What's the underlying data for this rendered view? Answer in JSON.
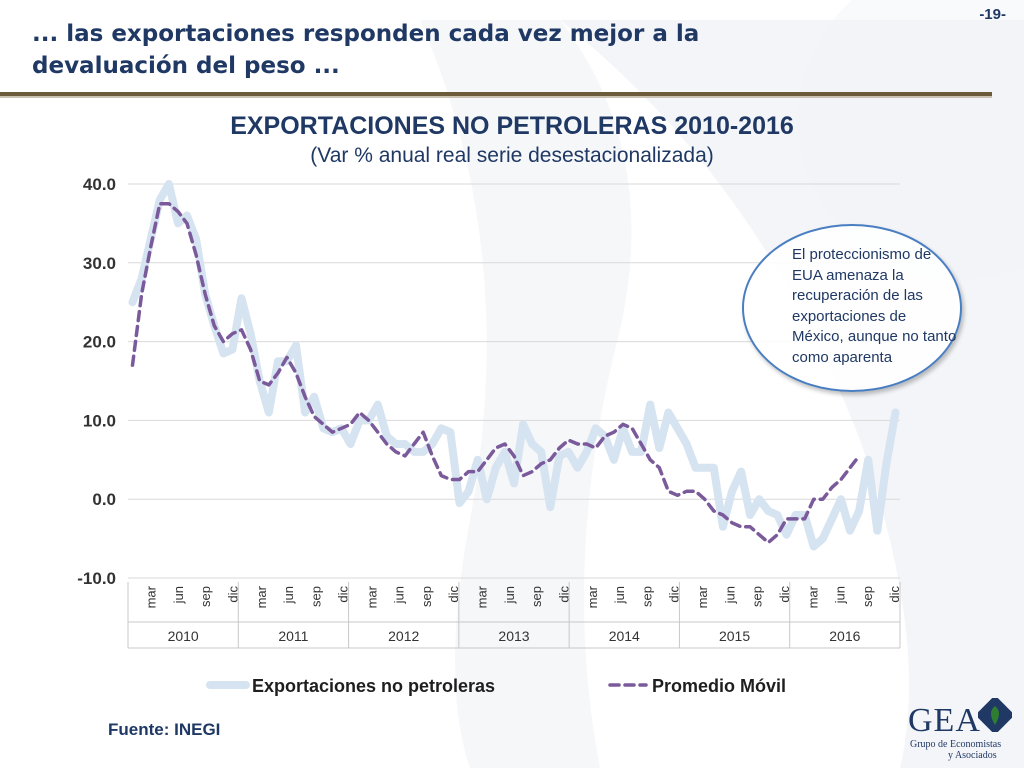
{
  "slide": {
    "title": "... las exportaciones responden cada vez mejor a la devaluación del peso ...",
    "page_number": "-19-",
    "source": "Fuente: INEGI",
    "callout": "El proteccionismo de EUA amenaza la recuperación de las exportaciones de México, aunque no tanto como aparenta",
    "logo": {
      "name": "GEA",
      "line1": "Grupo de Economistas",
      "line2": "y Asociados"
    },
    "colors": {
      "title": "#1f3864",
      "divider": "#6b5b3a",
      "callout_border": "#4a7ec2",
      "logo_mark": "#2e7d32"
    }
  },
  "chart_data": {
    "type": "line",
    "title": "EXPORTACIONES NO PETROLERAS 2010-2016",
    "subtitle": "(Var % anual real serie desestacionalizada)",
    "ylim": [
      -10,
      40
    ],
    "yticks": [
      "40.0",
      "30.0",
      "20.0",
      "10.0",
      "0.0",
      "-10.0"
    ],
    "month_ticks": [
      "mar",
      "jun",
      "sep",
      "dic"
    ],
    "years": [
      "2010",
      "2011",
      "2012",
      "2013",
      "2014",
      "2015",
      "2016"
    ],
    "legend_position": "bottom",
    "grid": true,
    "series": [
      {
        "name": "Exportaciones no petroleras",
        "color": "#d6e3f0",
        "style": "solid",
        "values": [
          25,
          28,
          33,
          38,
          40,
          35,
          36,
          33,
          26,
          22,
          18.5,
          19,
          25.5,
          21,
          15,
          11,
          17.5,
          17.5,
          19.5,
          11,
          13,
          9,
          8.5,
          9,
          7,
          10,
          10,
          12,
          8,
          7,
          7,
          6,
          6,
          7,
          9,
          8.5,
          -0.5,
          1,
          5,
          0,
          4,
          6,
          2,
          9.5,
          7,
          6,
          -1,
          5.5,
          6,
          4,
          6,
          9,
          8,
          5,
          9,
          6,
          6,
          12,
          6.5,
          11,
          9,
          7,
          4,
          4,
          4,
          -3.5,
          1,
          3.5,
          -2,
          0,
          -1.5,
          -2,
          -4.5,
          -2,
          -2,
          -6,
          -5,
          -2.5,
          0,
          -4,
          -1.5,
          5,
          -4,
          4.5,
          11
        ]
      },
      {
        "name": "Promedio Móvil",
        "color": "#7a5a9a",
        "style": "dashed",
        "values": [
          17,
          26,
          32,
          37.5,
          37.5,
          36.5,
          35,
          31,
          26,
          22,
          20,
          21,
          21.5,
          19,
          15,
          14.5,
          16,
          18,
          16,
          13,
          10.5,
          9.5,
          8.5,
          9,
          9.5,
          11,
          10,
          8.5,
          7,
          6,
          5.5,
          7,
          8.5,
          5.5,
          3,
          2.5,
          2.5,
          3.5,
          3.5,
          5,
          6.5,
          7,
          5.5,
          3,
          3.5,
          4.5,
          5,
          6.5,
          7.5,
          7,
          7,
          6.5,
          8,
          8.5,
          9.5,
          9,
          7,
          5,
          4,
          1,
          0.5,
          1,
          1,
          0,
          -1.5,
          -2,
          -3,
          -3.5,
          -3.5,
          -4.5,
          -5.5,
          -4.5,
          -2.5,
          -2.5,
          -2.5,
          0,
          0,
          1.5,
          2.5,
          4,
          5.5
        ]
      }
    ]
  }
}
